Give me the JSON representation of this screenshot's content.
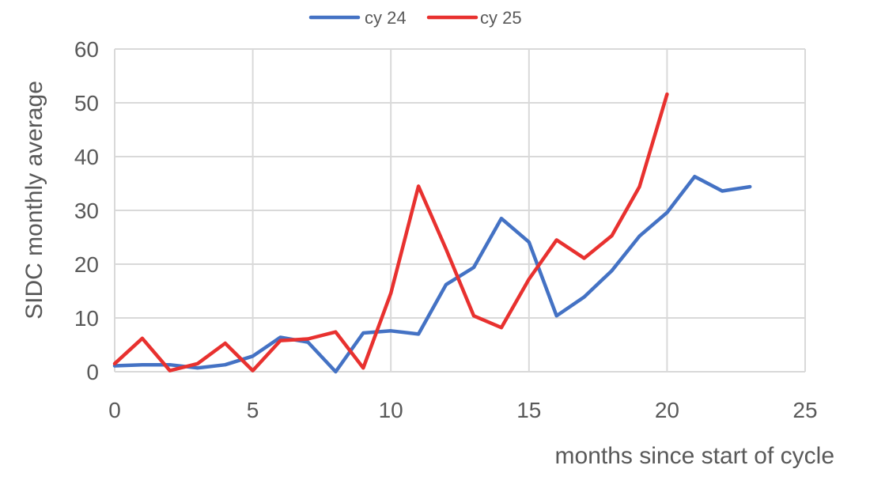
{
  "chart_data": {
    "type": "line",
    "title": "",
    "xlabel": "months since start of cycle",
    "ylabel": "SIDC monthly average",
    "xlim": [
      0,
      25
    ],
    "ylim": [
      0,
      60
    ],
    "x_ticks": [
      0,
      5,
      10,
      15,
      20,
      25
    ],
    "y_ticks": [
      0,
      10,
      20,
      30,
      40,
      50,
      60
    ],
    "grid": true,
    "legend_position": "top",
    "series": [
      {
        "name": "cy 24",
        "color": "#4472C4",
        "x": [
          0,
          1,
          2,
          3,
          4,
          5,
          6,
          7,
          8,
          9,
          10,
          11,
          12,
          13,
          14,
          15,
          16,
          17,
          18,
          19,
          20,
          21,
          22,
          23
        ],
        "values": [
          1.1,
          1.3,
          1.3,
          0.7,
          1.3,
          2.9,
          6.4,
          5.5,
          0.0,
          7.2,
          7.6,
          7.0,
          16.2,
          19.4,
          28.5,
          24.1,
          10.4,
          13.9,
          18.8,
          25.2,
          29.6,
          36.3,
          33.6,
          34.4
        ]
      },
      {
        "name": "cy 25",
        "color": "#E8312F",
        "x": [
          0,
          1,
          2,
          3,
          4,
          5,
          6,
          7,
          8,
          9,
          10,
          11,
          12,
          13,
          14,
          15,
          16,
          17,
          18,
          19,
          20
        ],
        "values": [
          1.5,
          6.2,
          0.2,
          1.5,
          5.3,
          0.2,
          5.8,
          6.1,
          7.4,
          0.7,
          14.6,
          34.5,
          22.8,
          10.4,
          8.2,
          17.2,
          24.5,
          21.1,
          25.3,
          34.4,
          51.6
        ]
      }
    ]
  }
}
